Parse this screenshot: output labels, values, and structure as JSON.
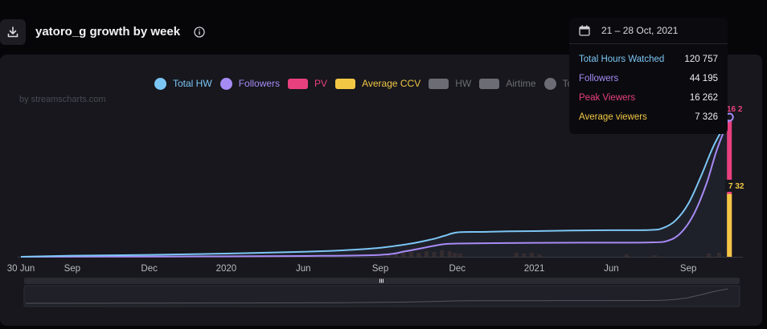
{
  "header": {
    "title": "yatoro_g growth by week",
    "download_icon": "download-icon",
    "info_icon": "info-icon"
  },
  "watermark": "by streamscharts.com",
  "legend": [
    {
      "label": "Total HW",
      "color": "#7cc6f5",
      "shape": "circle"
    },
    {
      "label": "Followers",
      "color": "#a78bf5",
      "shape": "circle"
    },
    {
      "label": "PV",
      "color": "#e8407f",
      "shape": "rect"
    },
    {
      "label": "Average CCV",
      "color": "#f2c744",
      "shape": "rect"
    },
    {
      "label": "HW",
      "color": "#6c6c75",
      "shape": "rect"
    },
    {
      "label": "Airtime",
      "color": "#6c6c75",
      "shape": "rect"
    },
    {
      "label": "Total",
      "color": "#6c6c75",
      "shape": "circle"
    }
  ],
  "tooltip": {
    "date": "21 – 28 Oct, 2021",
    "calendar_icon": "calendar-icon",
    "rows": [
      {
        "label": "Total Hours Watched",
        "value": "120 757",
        "color": "#7cc6f5"
      },
      {
        "label": "Followers",
        "value": "44 195",
        "color": "#a78bf5"
      },
      {
        "label": "Peak Viewers",
        "value": "16 262",
        "color": "#e8407f"
      },
      {
        "label": "Average viewers",
        "value": "7 326",
        "color": "#f2c744"
      }
    ]
  },
  "chart_data": {
    "type": "line",
    "x_tick_labels": [
      "30 Jun",
      "Sep",
      "Dec",
      "2020",
      "Jun",
      "Sep",
      "Dec",
      "2021",
      "Jun",
      "Sep"
    ],
    "x_ticks": [
      0,
      2,
      5,
      8,
      11,
      14,
      17,
      20,
      23,
      26
    ],
    "x_range": [
      0,
      28
    ],
    "end_labels": {
      "pv": "16 2",
      "ccv": "7 32"
    },
    "series": [
      {
        "name": "Total HW",
        "color": "#7cc6f5",
        "values": [
          [
            0,
            0
          ],
          [
            2,
            0.8
          ],
          [
            5,
            1.4
          ],
          [
            8,
            2.3
          ],
          [
            11,
            3.6
          ],
          [
            12.5,
            4.6
          ],
          [
            14,
            6.5
          ],
          [
            15.2,
            9.5
          ],
          [
            16,
            12.5
          ],
          [
            16.5,
            15
          ],
          [
            17,
            17.5
          ],
          [
            18,
            17.8
          ],
          [
            19,
            18.2
          ],
          [
            20,
            18.4
          ],
          [
            21,
            18.7
          ],
          [
            22,
            18.9
          ],
          [
            23,
            19.0
          ],
          [
            24.5,
            19.2
          ],
          [
            25,
            20.5
          ],
          [
            25.5,
            26
          ],
          [
            26,
            38
          ],
          [
            26.5,
            58
          ],
          [
            27,
            80
          ],
          [
            27.6,
            100
          ]
        ]
      },
      {
        "name": "Followers",
        "color": "#a78bf5",
        "values": [
          [
            0,
            0
          ],
          [
            5,
            0.2
          ],
          [
            11,
            0.6
          ],
          [
            14,
            1.4
          ],
          [
            15,
            4
          ],
          [
            16,
            7.5
          ],
          [
            16.5,
            9
          ],
          [
            17,
            9.5
          ],
          [
            19,
            9.8
          ],
          [
            20,
            10
          ],
          [
            22,
            10.1
          ],
          [
            24.5,
            10.3
          ],
          [
            25.2,
            11.5
          ],
          [
            25.7,
            17
          ],
          [
            26.2,
            30
          ],
          [
            26.7,
            52
          ],
          [
            27.1,
            76
          ],
          [
            27.6,
            100
          ]
        ]
      },
      {
        "name": "PV",
        "color": "#e8407f",
        "values": [
          [
            27.6,
            100
          ]
        ]
      },
      {
        "name": "Average CCV",
        "color": "#f2c744",
        "values": [
          [
            27.6,
            45
          ]
        ]
      }
    ],
    "activity_bars": [
      [
        14.3,
        0.3
      ],
      [
        14.6,
        0.4
      ],
      [
        14.9,
        0.5
      ],
      [
        15.2,
        0.6
      ],
      [
        15.5,
        0.5
      ],
      [
        15.8,
        0.7
      ],
      [
        16.1,
        0.6
      ],
      [
        16.4,
        0.8
      ],
      [
        16.7,
        0.7
      ],
      [
        16.9,
        0.5
      ],
      [
        17.1,
        0.4
      ],
      [
        19.3,
        0.5
      ],
      [
        19.6,
        0.4
      ],
      [
        19.9,
        0.5
      ],
      [
        20.2,
        0.3
      ],
      [
        23.6,
        0.3
      ],
      [
        24.7,
        0.2
      ],
      [
        26.8,
        0.4
      ],
      [
        27.2,
        0.5
      ]
    ],
    "grid": false,
    "legend_position": "top"
  }
}
